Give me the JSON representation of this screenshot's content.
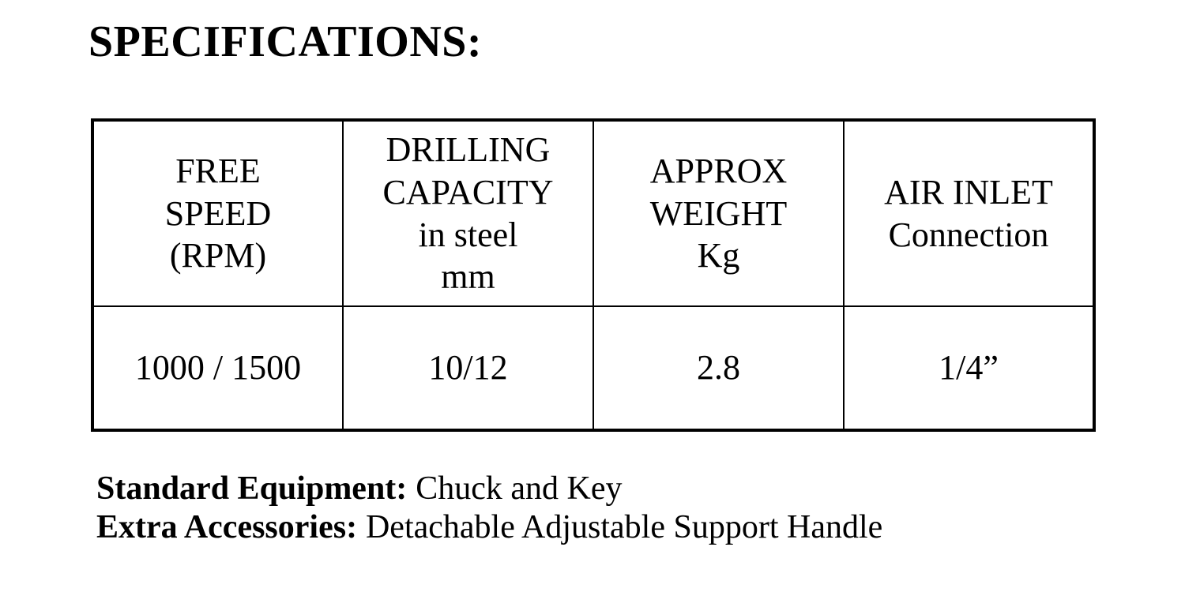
{
  "page": {
    "title": "SPECIFICATIONS:"
  },
  "table": {
    "headers": [
      "FREE\nSPEED\n(RPM)",
      "DRILLING\nCAPACITY\nin steel\nmm",
      "APPROX\nWEIGHT\nKg",
      "AIR INLET\nConnection"
    ],
    "row": {
      "free_speed": "1000 / 1500",
      "drilling_capacity": "10/12",
      "approx_weight": "2.8",
      "air_inlet": "1/4”"
    }
  },
  "notes": [
    {
      "label": "Standard Equipment:",
      "text": "Chuck and Key"
    },
    {
      "label": "Extra Accessories:",
      "text": "Detachable Adjustable Support Handle"
    }
  ],
  "colors": {
    "text": "#000000",
    "background": "#ffffff",
    "border": "#000000"
  }
}
